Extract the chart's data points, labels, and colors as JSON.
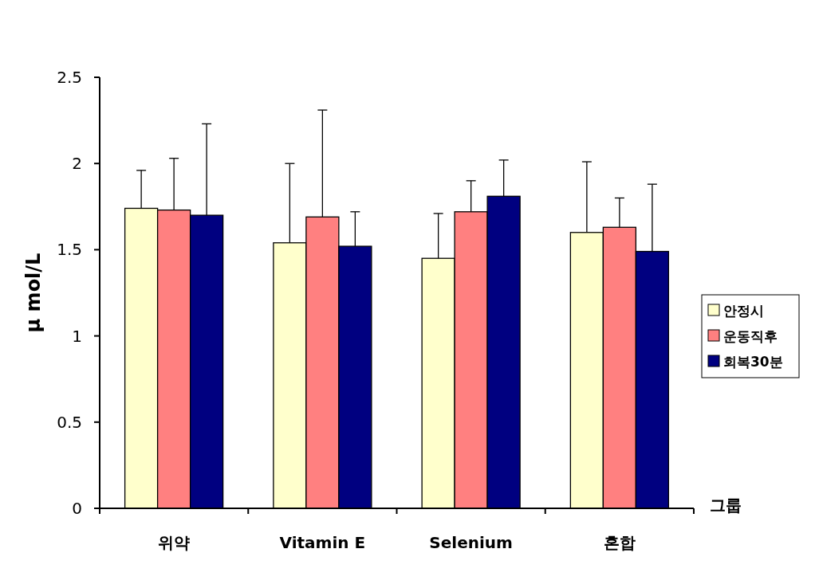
{
  "chart_data": {
    "type": "bar",
    "ylabel": "μ mol/L",
    "xlabel": "그룹",
    "categories": [
      "위약",
      "Vitamin E",
      "Selenium",
      "혼합"
    ],
    "series": [
      {
        "name": "안정시",
        "color": "#ffffcc",
        "values": [
          1.74,
          1.54,
          1.45,
          1.6
        ],
        "errors": [
          [
            1.74,
            1.96
          ],
          [
            1.54,
            2.0
          ],
          [
            1.45,
            1.71
          ],
          [
            1.6,
            2.01
          ]
        ]
      },
      {
        "name": "운동직후",
        "color": "#ff8080",
        "values": [
          1.73,
          1.69,
          1.72,
          1.63
        ],
        "errors": [
          [
            1.73,
            2.03
          ],
          [
            1.69,
            2.31
          ],
          [
            1.72,
            1.9
          ],
          [
            1.63,
            1.8
          ]
        ]
      },
      {
        "name": "회복30분",
        "color": "#000080",
        "values": [
          1.7,
          1.52,
          1.81,
          1.49
        ],
        "errors": [
          [
            1.7,
            2.23
          ],
          [
            1.52,
            1.72
          ],
          [
            1.81,
            2.02
          ],
          [
            1.49,
            1.88
          ]
        ]
      }
    ],
    "ylim": [
      0,
      2.5
    ],
    "yticks": [
      0,
      0.5,
      1,
      1.5,
      2,
      2.5
    ],
    "grid": false,
    "legend": "right"
  }
}
